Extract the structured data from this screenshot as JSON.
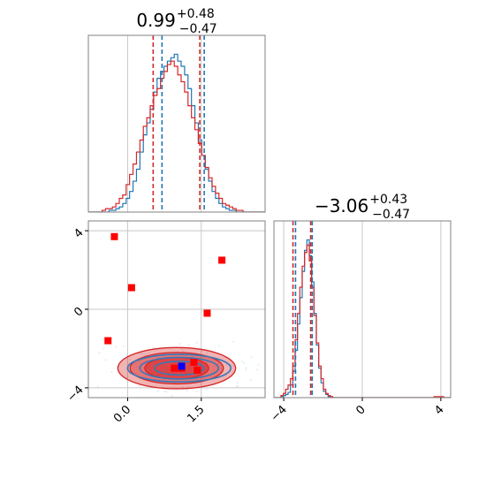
{
  "chart_data": [
    {
      "type": "histogram",
      "panel": "top-left",
      "title_value": "0.99",
      "title_plus": "+0.48",
      "title_minus": "−0.47",
      "xlim": [
        -0.8,
        2.8
      ],
      "grid": true,
      "bin_edges_start": -0.8,
      "bin_width": 0.07,
      "series": [
        {
          "color": "#1f77b4",
          "counts": [
            0,
            0,
            0,
            0,
            0,
            0,
            1,
            1,
            2,
            3,
            5,
            8,
            12,
            18,
            25,
            35,
            45,
            52,
            60,
            70,
            78,
            82,
            85,
            88,
            90,
            92,
            88,
            85,
            80,
            72,
            62,
            52,
            42,
            33,
            25,
            18,
            12,
            8,
            5,
            3,
            2,
            1,
            1,
            0,
            0,
            0,
            0,
            0,
            0,
            0,
            0,
            0
          ]
        },
        {
          "color": "#d62728",
          "counts": [
            0,
            0,
            0,
            0,
            1,
            2,
            2,
            3,
            5,
            8,
            10,
            16,
            22,
            28,
            35,
            42,
            50,
            55,
            62,
            68,
            72,
            78,
            82,
            86,
            88,
            85,
            80,
            76,
            70,
            62,
            55,
            48,
            40,
            33,
            26,
            20,
            15,
            11,
            8,
            5,
            4,
            3,
            2,
            1,
            1,
            0,
            0,
            0,
            0,
            0,
            0,
            0
          ]
        }
      ],
      "vlines": [
        {
          "x": 0.52,
          "color": "#d62728"
        },
        {
          "x": 0.7,
          "color": "#1f77b4"
        },
        {
          "x": 1.47,
          "color": "#d62728"
        },
        {
          "x": 1.56,
          "color": "#1f77b4"
        }
      ]
    },
    {
      "type": "contour-scatter",
      "panel": "bottom-left",
      "xlim": [
        -0.8,
        2.8
      ],
      "ylim": [
        -4.5,
        4.5
      ],
      "xticks": [
        "0.0",
        "1.5"
      ],
      "xtick_values": [
        0.0,
        1.5
      ],
      "yticks": [
        "−4",
        "0",
        "4"
      ],
      "ytick_values": [
        -4,
        0,
        4
      ],
      "grid": true,
      "red_points": [
        {
          "x": -0.27,
          "y": 3.7
        },
        {
          "x": 0.08,
          "y": 1.1
        },
        {
          "x": 1.92,
          "y": 2.5
        },
        {
          "x": 1.62,
          "y": -0.2
        },
        {
          "x": -0.4,
          "y": -1.6
        },
        {
          "x": 0.95,
          "y": -3.0
        },
        {
          "x": 1.35,
          "y": -2.7
        },
        {
          "x": 1.42,
          "y": -3.1
        },
        {
          "x": 1.1,
          "y": -3.0
        }
      ],
      "blue_point": {
        "x": 1.1,
        "y": -2.9
      },
      "contours_red": [
        {
          "cx": 1.0,
          "cy": -3.0,
          "rx": 1.2,
          "ry": 1.05,
          "opacity": 0.35
        },
        {
          "cx": 1.0,
          "cy": -3.0,
          "rx": 0.95,
          "ry": 0.8,
          "opacity": 0.45
        },
        {
          "cx": 1.0,
          "cy": -3.0,
          "rx": 0.65,
          "ry": 0.55,
          "opacity": 0.6
        }
      ],
      "contours_blue": [
        {
          "cx": 1.05,
          "cy": -3.0,
          "rx": 1.05,
          "ry": 0.7
        },
        {
          "cx": 1.05,
          "cy": -3.0,
          "rx": 0.8,
          "ry": 0.55
        },
        {
          "cx": 1.05,
          "cy": -3.0,
          "rx": 0.5,
          "ry": 0.35
        }
      ]
    },
    {
      "type": "histogram",
      "panel": "bottom-right",
      "title_value": "−3.06",
      "title_plus": "+0.43",
      "title_minus": "−0.47",
      "xlim": [
        -4.5,
        4.5
      ],
      "xticks": [
        "−4",
        "0",
        "4"
      ],
      "xtick_values": [
        -4,
        0,
        4
      ],
      "grid": true,
      "bin_edges_start": -4.5,
      "bin_width": 0.12,
      "series": [
        {
          "color": "#1f77b4",
          "counts": [
            0,
            0,
            0,
            1,
            2,
            3,
            5,
            12,
            25,
            45,
            70,
            95,
            120,
            140,
            150,
            135,
            110,
            80,
            50,
            28,
            14,
            6,
            3,
            1,
            0,
            0,
            0,
            0,
            0,
            0,
            0,
            0,
            0,
            0,
            0,
            0,
            0,
            0,
            0,
            0,
            0,
            0,
            0,
            0,
            0,
            0,
            0,
            0,
            0,
            0,
            0,
            0,
            0,
            0,
            0,
            0,
            0,
            0,
            0,
            0,
            0,
            0,
            0,
            0,
            0,
            0,
            0,
            0,
            0,
            0,
            0,
            0,
            0,
            0,
            0
          ]
        },
        {
          "color": "#d62728",
          "counts": [
            0,
            0,
            0,
            2,
            4,
            8,
            12,
            18,
            30,
            55,
            80,
            105,
            125,
            138,
            145,
            130,
            105,
            78,
            52,
            30,
            18,
            8,
            4,
            2,
            1,
            0,
            0,
            0,
            0,
            0,
            0,
            0,
            0,
            0,
            0,
            0,
            0,
            0,
            0,
            0,
            0,
            0,
            0,
            0,
            0,
            0,
            0,
            0,
            0,
            0,
            0,
            0,
            0,
            0,
            0,
            0,
            0,
            0,
            0,
            0,
            0,
            0,
            0,
            0,
            0,
            0,
            0,
            0,
            1,
            1,
            1,
            1,
            0,
            0,
            0
          ]
        }
      ],
      "vlines": [
        {
          "x": -3.53,
          "color": "#d62728"
        },
        {
          "x": -3.4,
          "color": "#1f77b4"
        },
        {
          "x": -2.63,
          "color": "#d62728"
        },
        {
          "x": -2.55,
          "color": "#1f77b4"
        }
      ]
    }
  ]
}
